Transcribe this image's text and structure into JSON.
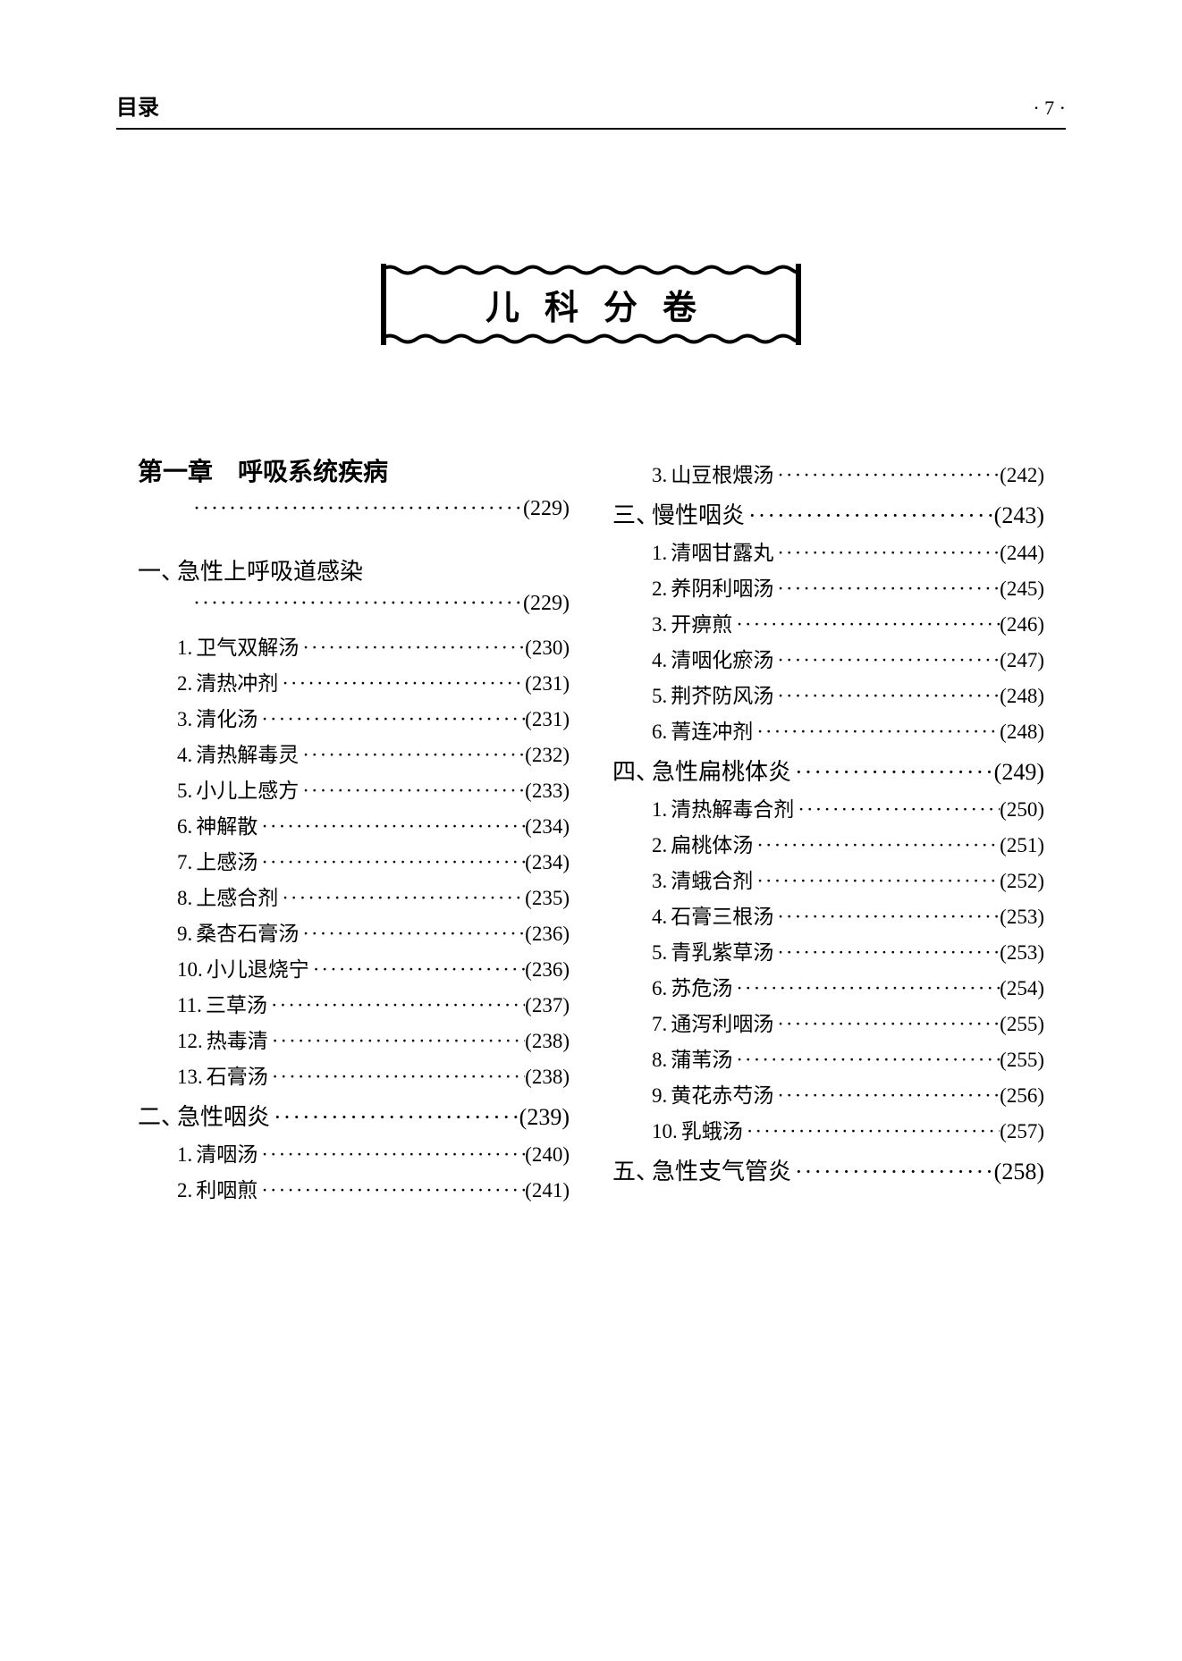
{
  "header": {
    "left": "目录",
    "page": "· 7 ·"
  },
  "volume_title": "儿科分卷",
  "chapter": {
    "label": "第一章　呼吸系统疾病",
    "page": "(229)"
  },
  "sections": [
    {
      "num": "一、",
      "title": "急性上呼吸道感染",
      "page": "(229)",
      "items": [
        {
          "n": "1.",
          "t": "卫气双解汤",
          "p": "(230)"
        },
        {
          "n": "2.",
          "t": "清热冲剂",
          "p": "(231)"
        },
        {
          "n": "3.",
          "t": "清化汤",
          "p": "(231)"
        },
        {
          "n": "4.",
          "t": "清热解毒灵",
          "p": "(232)"
        },
        {
          "n": "5.",
          "t": "小儿上感方",
          "p": "(233)"
        },
        {
          "n": "6.",
          "t": "神解散",
          "p": "(234)"
        },
        {
          "n": "7.",
          "t": "上感汤",
          "p": "(234)"
        },
        {
          "n": "8.",
          "t": "上感合剂",
          "p": "(235)"
        },
        {
          "n": "9.",
          "t": "桑杏石膏汤",
          "p": "(236)"
        },
        {
          "n": "10.",
          "t": "小儿退烧宁",
          "p": "(236)"
        },
        {
          "n": "11.",
          "t": "三草汤",
          "p": "(237)"
        },
        {
          "n": "12.",
          "t": "热毒清",
          "p": "(238)"
        },
        {
          "n": "13.",
          "t": "石膏汤",
          "p": "(238)"
        }
      ]
    },
    {
      "num": "二、",
      "title": "急性咽炎",
      "page": "(239)",
      "items": [
        {
          "n": "1.",
          "t": "清咽汤",
          "p": "(240)"
        },
        {
          "n": "2.",
          "t": "利咽煎",
          "p": "(241)"
        },
        {
          "n": "3.",
          "t": "山豆根煨汤",
          "p": "(242)"
        }
      ]
    },
    {
      "num": "三、",
      "title": "慢性咽炎",
      "page": "(243)",
      "items": [
        {
          "n": "1.",
          "t": "清咽甘露丸",
          "p": "(244)"
        },
        {
          "n": "2.",
          "t": "养阴利咽汤",
          "p": "(245)"
        },
        {
          "n": "3.",
          "t": "开痹煎",
          "p": "(246)"
        },
        {
          "n": "4.",
          "t": "清咽化瘀汤",
          "p": "(247)"
        },
        {
          "n": "5.",
          "t": "荆芥防风汤",
          "p": "(248)"
        },
        {
          "n": "6.",
          "t": "菁连冲剂",
          "p": "(248)"
        }
      ]
    },
    {
      "num": "四、",
      "title": "急性扁桃体炎",
      "page": "(249)",
      "items": [
        {
          "n": "1.",
          "t": "清热解毒合剂",
          "p": "(250)"
        },
        {
          "n": "2.",
          "t": "扁桃体汤",
          "p": "(251)"
        },
        {
          "n": "3.",
          "t": "清蛾合剂",
          "p": "(252)"
        },
        {
          "n": "4.",
          "t": "石膏三根汤",
          "p": "(253)"
        },
        {
          "n": "5.",
          "t": "青乳紫草汤",
          "p": "(253)"
        },
        {
          "n": "6.",
          "t": "苏危汤",
          "p": "(254)"
        },
        {
          "n": "7.",
          "t": "通泻利咽汤",
          "p": "(255)"
        },
        {
          "n": "8.",
          "t": "蒲苇汤",
          "p": "(255)"
        },
        {
          "n": "9.",
          "t": "黄花赤芍汤",
          "p": "(256)"
        },
        {
          "n": "10.",
          "t": "乳蛾汤",
          "p": "(257)"
        }
      ]
    },
    {
      "num": "五、",
      "title": "急性支气管炎",
      "page": "(258)",
      "items": []
    }
  ],
  "layout": {
    "col1_sections": [
      0,
      1
    ],
    "col1_section1_item_cutoff": 2,
    "col2_sections_start": 1
  },
  "style": {
    "dot_char": "·",
    "background": "#ffffff",
    "text_color": "#000000"
  }
}
